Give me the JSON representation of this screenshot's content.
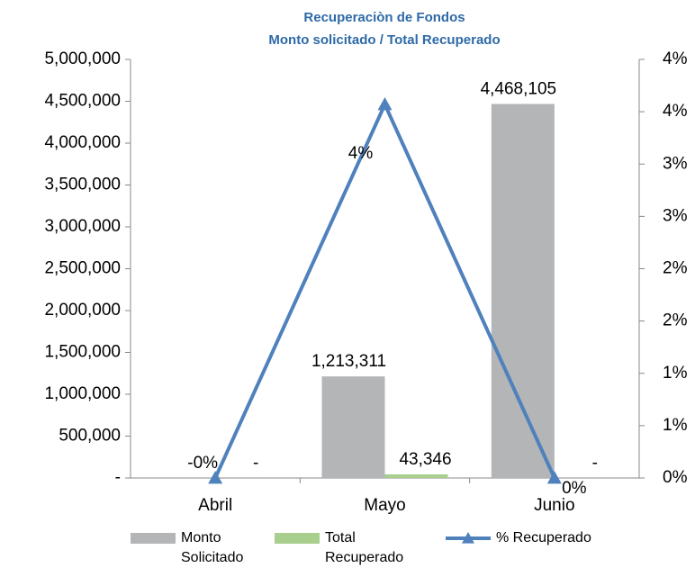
{
  "chart_data": {
    "type": "bar",
    "title": "Recuperaciòn de Fondos",
    "subtitle": "Monto solicitado / Total Recuperado",
    "categories": [
      "Abril",
      "Mayo",
      "Junio"
    ],
    "series": [
      {
        "name": "Monto Solicitado",
        "type": "bar",
        "color": "#b3b5b6",
        "values": [
          0,
          1213311,
          4468105
        ],
        "value_labels": [
          null,
          "1,213,311",
          "4,468,105"
        ]
      },
      {
        "name": "Total Recuperado",
        "type": "bar",
        "color": "#a9cf8e",
        "values": [
          0,
          43346,
          0
        ],
        "value_labels": [
          "-",
          "43,346",
          "-"
        ]
      },
      {
        "name": "% Recuperado",
        "type": "line",
        "axis": "y2",
        "color": "#4f81bd",
        "values": [
          0,
          3.57,
          0
        ],
        "value_labels": [
          "-0%",
          "4%",
          "0%"
        ]
      }
    ],
    "ylim": [
      0,
      5000000
    ],
    "yticks": [
      {
        "value": 0,
        "label": "-"
      },
      {
        "value": 500000,
        "label": "500,000"
      },
      {
        "value": 1000000,
        "label": "1,000,000"
      },
      {
        "value": 1500000,
        "label": "1,500,000"
      },
      {
        "value": 2000000,
        "label": "2,000,000"
      },
      {
        "value": 2500000,
        "label": "2,500,000"
      },
      {
        "value": 3000000,
        "label": "3,000,000"
      },
      {
        "value": 3500000,
        "label": "3,500,000"
      },
      {
        "value": 4000000,
        "label": "4,000,000"
      },
      {
        "value": 4500000,
        "label": "4,500,000"
      },
      {
        "value": 5000000,
        "label": "5,000,000"
      }
    ],
    "y2lim": [
      0,
      4
    ],
    "y2ticks": [
      {
        "value": 0,
        "label": "0%"
      },
      {
        "value": 0.5,
        "label": "1%"
      },
      {
        "value": 1,
        "label": "1%"
      },
      {
        "value": 1.5,
        "label": "2%"
      },
      {
        "value": 2,
        "label": "2%"
      },
      {
        "value": 2.5,
        "label": "3%"
      },
      {
        "value": 3,
        "label": "3%"
      },
      {
        "value": 3.5,
        "label": "4%"
      },
      {
        "value": 4,
        "label": "4%"
      }
    ],
    "legend": "bottom"
  }
}
